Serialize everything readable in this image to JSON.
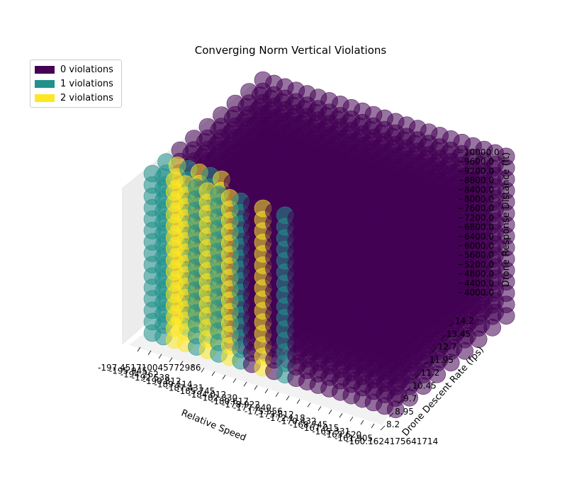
{
  "chart_data": {
    "type": "scatter3d",
    "title": "Converging Norm Vertical Violations",
    "xlabel": "Relative Speed",
    "ylabel": "Drone Descent Rate (fps)",
    "zlabel": "Drone Response Distance (ft)",
    "x_ticks": [
      "-197.451710045772986",
      "-195.945",
      "-194.262",
      "-192.538",
      "-190.812",
      "-189.114",
      "-187.431",
      "-185.745",
      "-184.012",
      "-182.330",
      "-180.617",
      "-178.922",
      "-177.240",
      "-175.556",
      "-173.812",
      "-172.118",
      "-170.432",
      "-168.745",
      "-167.015",
      "-165.331",
      "-163.620",
      "-161.905",
      "-160.1624175641714"
    ],
    "y_ticks": [
      "8.2",
      "8.95",
      "9.7",
      "10.45",
      "11.2",
      "11.95",
      "12.7",
      "13.45",
      "14.2"
    ],
    "z_ticks": [
      "4000.0",
      "4400.0",
      "4800.0",
      "5200.0",
      "5600.0",
      "6000.0",
      "6400.0",
      "6800.0",
      "7200.0",
      "7600.0",
      "8000.0",
      "8400.0",
      "8800.0",
      "9200.0",
      "9600.0",
      "10000.0"
    ],
    "xlim": [
      -197.45171004577298,
      -160.1624175641714
    ],
    "ylim": [
      8.2,
      14.2
    ],
    "zlim": [
      4000,
      10000
    ],
    "legend": {
      "placement": "upper-left",
      "items": [
        {
          "label": "0 violations",
          "color": "#440154"
        },
        {
          "label": "1 violations",
          "color": "#21918c"
        },
        {
          "label": "2 violations",
          "color": "#fde725"
        }
      ]
    },
    "front_columns": [
      {
        "x_index": 0,
        "color": "#21918c"
      },
      {
        "x_index": 1,
        "color": "#21918c"
      },
      {
        "x_index": 2,
        "color": "#fde725"
      },
      {
        "x_index": 3,
        "color": "#fde725"
      },
      {
        "x_index": 4,
        "color": "#21918c"
      },
      {
        "x_index": 5,
        "color": "#fde725"
      },
      {
        "x_index": 6,
        "color": "#21918c"
      },
      {
        "x_index": 7,
        "color": "#fde725"
      },
      {
        "x_index": 8,
        "color": "#21918c"
      },
      {
        "x_index": 9,
        "color": "#440154"
      },
      {
        "x_index": 10,
        "color": "#fde725"
      },
      {
        "x_index": 11,
        "color": "#440154"
      },
      {
        "x_index": 12,
        "color": "#21918c"
      }
    ],
    "grid": true
  }
}
